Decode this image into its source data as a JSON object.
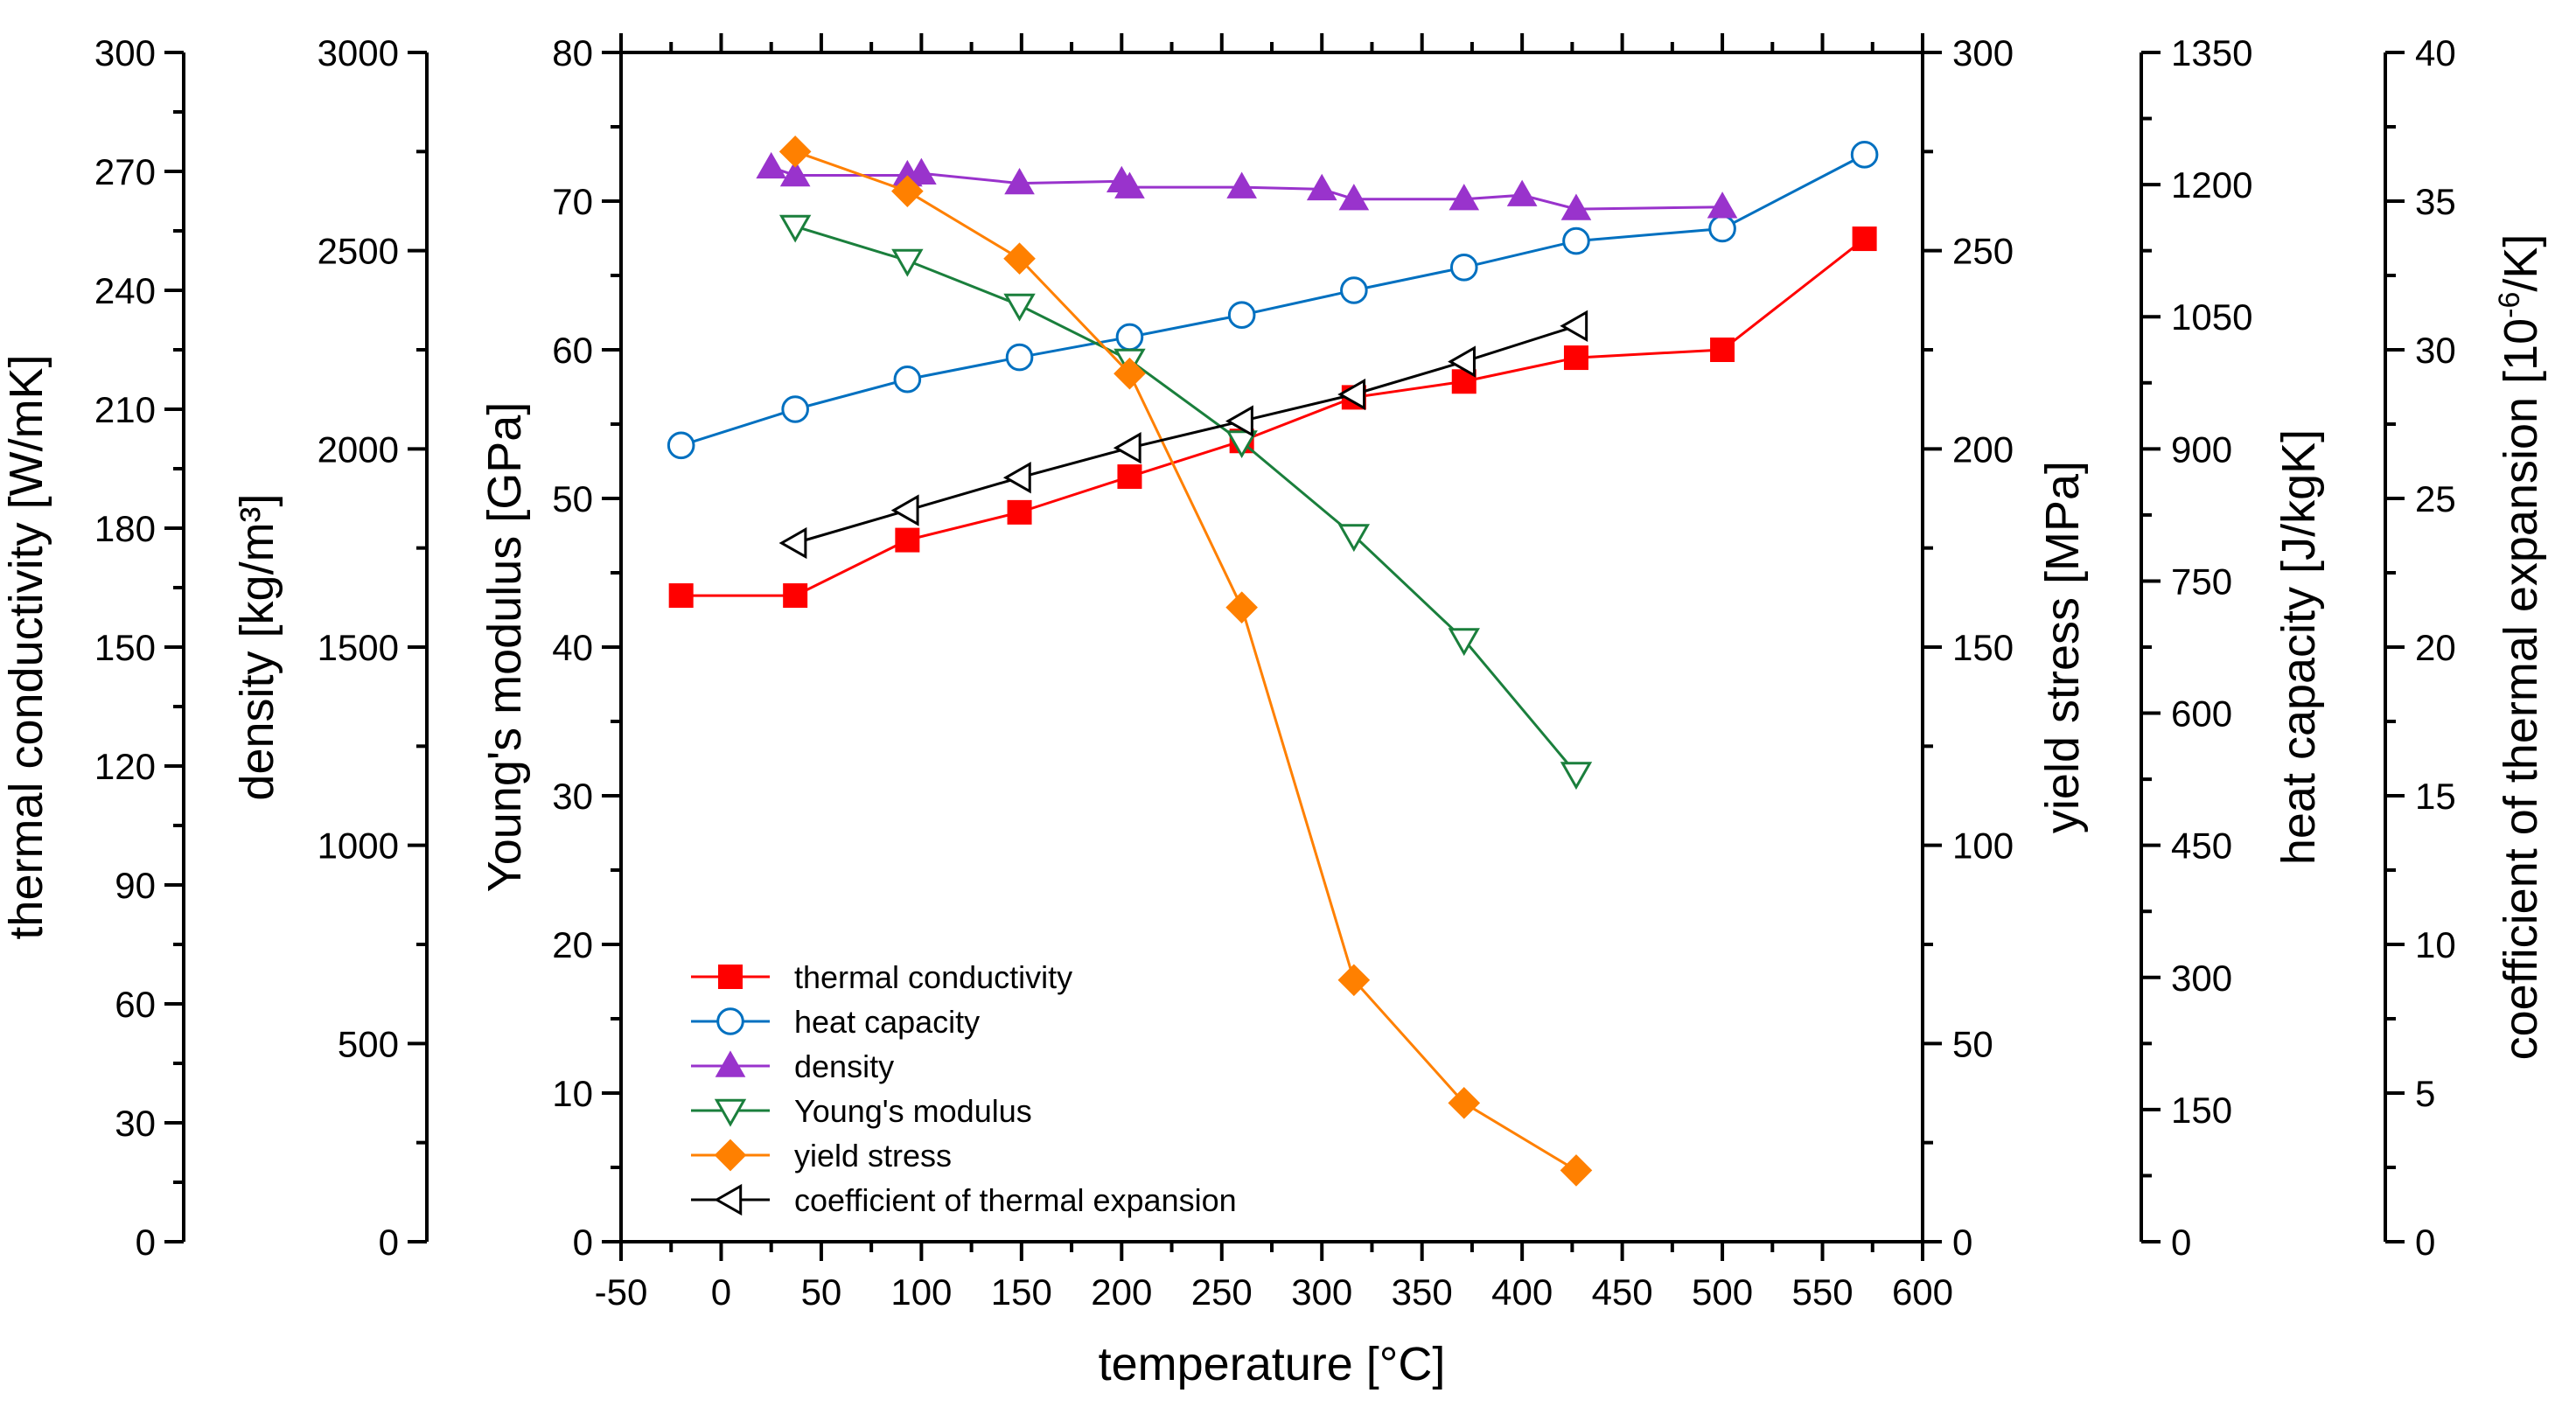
{
  "chart_data": {
    "type": "line",
    "x_axis": {
      "label": "temperature [°C]",
      "range": [
        -50,
        600
      ],
      "ticks": [
        -50,
        0,
        50,
        100,
        150,
        200,
        250,
        300,
        350,
        400,
        450,
        500,
        550,
        600
      ]
    },
    "y_axes": [
      {
        "id": "tc",
        "label": "thermal conductivity [W/mK]",
        "range": [
          0,
          300
        ],
        "ticks": [
          0,
          30,
          60,
          90,
          120,
          150,
          180,
          210,
          240,
          270,
          300
        ]
      },
      {
        "id": "dens",
        "label": "density [kg/m³]",
        "range": [
          0,
          3000
        ],
        "ticks": [
          0,
          500,
          1000,
          1500,
          2000,
          2500,
          3000
        ]
      },
      {
        "id": "ym",
        "label": "Young's modulus [GPa]",
        "range": [
          0,
          80
        ],
        "ticks": [
          0,
          10,
          20,
          30,
          40,
          50,
          60,
          70,
          80
        ]
      },
      {
        "id": "ys",
        "label": "yield stress [MPa]",
        "range": [
          0,
          300
        ],
        "ticks": [
          0,
          50,
          100,
          150,
          200,
          250,
          300
        ]
      },
      {
        "id": "hc",
        "label": "heat capacity [J/kgK]",
        "range": [
          0,
          1350
        ],
        "ticks": [
          0,
          150,
          300,
          450,
          600,
          750,
          900,
          1050,
          1200,
          1350
        ]
      },
      {
        "id": "cte",
        "label": "coefficient of thermal expansion [10",
        "label_sup": "-6",
        "label_end": "/K]",
        "range": [
          0,
          40
        ],
        "ticks": [
          0,
          5,
          10,
          15,
          20,
          25,
          30,
          35,
          40
        ]
      }
    ],
    "series": [
      {
        "name": "thermal conductivity",
        "axis": "tc",
        "color": "#ff0000",
        "marker": "square-filled",
        "x": [
          -20,
          37,
          93,
          149,
          204,
          260,
          316,
          371,
          427,
          500,
          571
        ],
        "y": [
          163,
          163,
          177,
          184,
          193,
          202,
          213,
          217,
          223,
          225,
          253
        ]
      },
      {
        "name": "heat capacity",
        "axis": "hc",
        "color": "#0070c0",
        "marker": "circle-open",
        "x": [
          -20,
          37,
          93,
          149,
          204,
          260,
          316,
          371,
          427,
          500,
          571
        ],
        "y": [
          904,
          945,
          979,
          1004,
          1027,
          1052,
          1080,
          1106,
          1136,
          1150,
          1234
        ]
      },
      {
        "name": "density",
        "axis": "dens",
        "color": "#9933cc",
        "marker": "triangle-up-filled",
        "x": [
          25,
          37,
          93,
          100,
          149,
          200,
          204,
          260,
          300,
          316,
          371,
          400,
          427,
          500
        ],
        "y": [
          2710,
          2690,
          2690,
          2695,
          2670,
          2675,
          2660,
          2660,
          2655,
          2630,
          2630,
          2640,
          2605,
          2610
        ]
      },
      {
        "name": "Young's modulus",
        "axis": "ym",
        "color": "#1a7f3c",
        "marker": "triangle-down-open",
        "x": [
          37,
          93,
          149,
          204,
          260,
          316,
          371,
          427
        ],
        "y": [
          68.3,
          66.0,
          63.0,
          59.3,
          53.8,
          47.5,
          40.5,
          31.5
        ]
      },
      {
        "name": "yield stress",
        "axis": "ys",
        "color": "#ff8000",
        "marker": "diamond-filled",
        "x": [
          37,
          93,
          149,
          204,
          260,
          316,
          371,
          427
        ],
        "y": [
          275,
          265,
          248,
          219,
          160,
          66,
          35,
          18
        ]
      },
      {
        "name": "coefficient of thermal expansion",
        "axis": "cte",
        "color": "#000000",
        "marker": "triangle-left-open",
        "x": [
          37,
          93,
          149,
          204,
          260,
          316,
          371,
          427
        ],
        "y": [
          23.5,
          24.6,
          25.7,
          26.7,
          27.6,
          28.5,
          29.6,
          30.8
        ]
      }
    ],
    "legend": {
      "placement": "bottom-left"
    }
  }
}
